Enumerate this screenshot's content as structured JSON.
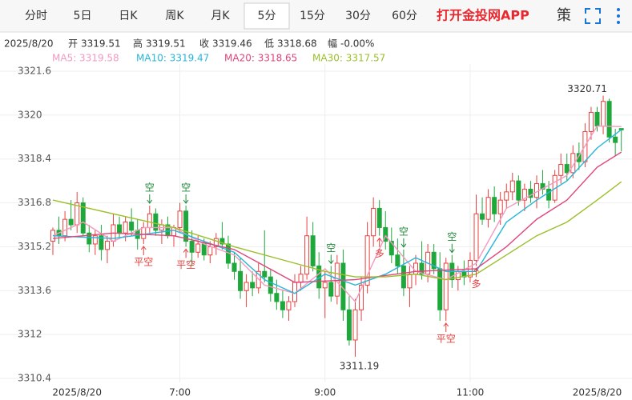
{
  "header": {
    "tabs": [
      "分时",
      "5日",
      "日K",
      "周K",
      "月K",
      "5分",
      "15分",
      "30分",
      "60分"
    ],
    "active_tab": 5,
    "brand": "打开金投网APP",
    "tools": [
      "策"
    ]
  },
  "info": {
    "date": "2025/8/20",
    "labels": [
      "开",
      "高",
      "收",
      "低",
      "幅"
    ],
    "change": "-0.00%"
  },
  "chart_data": {
    "type": "candlestick",
    "up_color": "#e8403e",
    "down_color": "#1ea83c",
    "ylim": [
      3310.4,
      3321.6
    ],
    "yticks": [
      3310.4,
      3312,
      3313.6,
      3315.2,
      3316.8,
      3318.4,
      3320,
      3321.6
    ],
    "grid": true,
    "x_labels": [
      {
        "label": "2025/8/20",
        "bar": 4
      },
      {
        "label": "7:00",
        "bar": 21
      },
      {
        "label": "9:00",
        "bar": 45
      },
      {
        "label": "11:00",
        "bar": 69
      },
      {
        "label": "2025/8/20",
        "bar": 90
      }
    ],
    "candles": [
      [
        3315.4,
        3315.9,
        3314.9,
        3315.8
      ],
      [
        3315.8,
        3316.3,
        3315.3,
        3315.6
      ],
      [
        3315.6,
        3316.5,
        3315.4,
        3316.2
      ],
      [
        3316.2,
        3316.9,
        3315.8,
        3316.0
      ],
      [
        3316.0,
        3317.2,
        3315.7,
        3316.8
      ],
      [
        3316.8,
        3317.0,
        3315.6,
        3315.7
      ],
      [
        3315.7,
        3316.0,
        3315.0,
        3315.3
      ],
      [
        3315.3,
        3315.8,
        3314.9,
        3315.6
      ],
      [
        3315.6,
        3316.0,
        3314.7,
        3315.1
      ],
      [
        3315.1,
        3315.6,
        3314.6,
        3315.4
      ],
      [
        3315.4,
        3316.4,
        3315.2,
        3316.0
      ],
      [
        3316.0,
        3316.3,
        3315.5,
        3315.7
      ],
      [
        3315.7,
        3316.3,
        3315.4,
        3316.1
      ],
      [
        3316.1,
        3316.6,
        3315.6,
        3315.8
      ],
      [
        3315.8,
        3316.2,
        3315.1,
        3315.5
      ],
      [
        3315.5,
        3316.1,
        3315.3,
        3315.9
      ],
      [
        3315.9,
        3316.7,
        3315.7,
        3316.4
      ],
      [
        3316.4,
        3316.6,
        3315.6,
        3315.8
      ],
      [
        3315.8,
        3316.2,
        3315.3,
        3316.0
      ],
      [
        3316.0,
        3316.3,
        3315.5,
        3315.6
      ],
      [
        3315.6,
        3316.0,
        3315.2,
        3315.9
      ],
      [
        3315.9,
        3316.8,
        3315.7,
        3316.5
      ],
      [
        3316.5,
        3316.7,
        3315.2,
        3315.4
      ],
      [
        3315.4,
        3315.8,
        3314.5,
        3315.0
      ],
      [
        3315.0,
        3315.6,
        3314.8,
        3315.3
      ],
      [
        3315.3,
        3315.5,
        3314.7,
        3314.9
      ],
      [
        3314.9,
        3315.4,
        3314.6,
        3315.2
      ],
      [
        3315.2,
        3315.7,
        3314.9,
        3315.5
      ],
      [
        3315.5,
        3316.1,
        3315.1,
        3315.3
      ],
      [
        3315.3,
        3315.6,
        3314.4,
        3314.6
      ],
      [
        3314.6,
        3315.0,
        3314.0,
        3314.3
      ],
      [
        3314.3,
        3314.8,
        3313.3,
        3313.6
      ],
      [
        3313.6,
        3314.2,
        3313.0,
        3313.9
      ],
      [
        3313.9,
        3314.3,
        3313.4,
        3313.7
      ],
      [
        3313.7,
        3314.6,
        3313.5,
        3314.3
      ],
      [
        3314.3,
        3315.8,
        3313.9,
        3314.1
      ],
      [
        3314.1,
        3314.4,
        3313.2,
        3313.5
      ],
      [
        3313.5,
        3314.0,
        3312.9,
        3313.2
      ],
      [
        3313.2,
        3313.6,
        3312.6,
        3312.9
      ],
      [
        3312.9,
        3313.4,
        3312.5,
        3313.2
      ],
      [
        3313.2,
        3314.2,
        3313.0,
        3313.9
      ],
      [
        3313.9,
        3314.5,
        3313.6,
        3314.2
      ],
      [
        3314.2,
        3316.3,
        3314.0,
        3315.6
      ],
      [
        3315.6,
        3316.1,
        3314.3,
        3314.5
      ],
      [
        3314.5,
        3315.0,
        3313.3,
        3313.7
      ],
      [
        3313.7,
        3314.3,
        3312.6,
        3313.9
      ],
      [
        3313.9,
        3314.5,
        3313.2,
        3313.4
      ],
      [
        3313.4,
        3314.9,
        3313.1,
        3314.6
      ],
      [
        3314.6,
        3315.1,
        3312.5,
        3312.9
      ],
      [
        3312.9,
        3313.4,
        3311.6,
        3311.8
      ],
      [
        3311.8,
        3313.3,
        3311.19,
        3312.9
      ],
      [
        3312.9,
        3314.1,
        3312.5,
        3313.8
      ],
      [
        3313.8,
        3316.1,
        3313.5,
        3315.6
      ],
      [
        3315.6,
        3317.0,
        3315.2,
        3316.6
      ],
      [
        3316.6,
        3316.9,
        3315.6,
        3315.9
      ],
      [
        3315.9,
        3316.5,
        3315.1,
        3315.4
      ],
      [
        3315.4,
        3315.9,
        3314.6,
        3314.9
      ],
      [
        3314.9,
        3315.5,
        3314.2,
        3314.5
      ],
      [
        3314.5,
        3315.1,
        3313.4,
        3313.7
      ],
      [
        3313.7,
        3314.5,
        3313.0,
        3314.2
      ],
      [
        3314.2,
        3314.9,
        3313.8,
        3314.6
      ],
      [
        3314.6,
        3315.4,
        3314.0,
        3314.2
      ],
      [
        3314.2,
        3315.3,
        3313.9,
        3315.0
      ],
      [
        3315.0,
        3315.3,
        3314.2,
        3314.4
      ],
      [
        3314.4,
        3315.0,
        3312.5,
        3312.9
      ],
      [
        3312.9,
        3314.8,
        3312.5,
        3314.6
      ],
      [
        3314.6,
        3314.9,
        3313.7,
        3314.0
      ],
      [
        3314.0,
        3314.5,
        3313.6,
        3314.3
      ],
      [
        3314.3,
        3314.7,
        3313.8,
        3314.1
      ],
      [
        3314.1,
        3315.0,
        3313.9,
        3314.7
      ],
      [
        3314.7,
        3317.1,
        3314.5,
        3316.4
      ],
      [
        3316.4,
        3317.0,
        3316.0,
        3316.2
      ],
      [
        3316.2,
        3317.3,
        3315.9,
        3317.0
      ],
      [
        3317.0,
        3317.4,
        3316.1,
        3316.4
      ],
      [
        3316.4,
        3317.2,
        3316.0,
        3316.9
      ],
      [
        3316.9,
        3317.5,
        3316.6,
        3317.2
      ],
      [
        3317.2,
        3317.9,
        3316.9,
        3317.6
      ],
      [
        3317.6,
        3317.8,
        3316.7,
        3316.9
      ],
      [
        3316.9,
        3317.5,
        3316.5,
        3317.3
      ],
      [
        3317.3,
        3317.6,
        3316.8,
        3317.0
      ],
      [
        3317.0,
        3317.8,
        3316.6,
        3317.5
      ],
      [
        3317.5,
        3318.0,
        3317.1,
        3317.3
      ],
      [
        3317.3,
        3317.6,
        3316.6,
        3316.9
      ],
      [
        3316.9,
        3318.0,
        3316.8,
        3317.8
      ],
      [
        3317.8,
        3318.6,
        3317.5,
        3318.2
      ],
      [
        3318.2,
        3318.6,
        3317.6,
        3317.9
      ],
      [
        3317.9,
        3318.9,
        3317.7,
        3318.6
      ],
      [
        3318.6,
        3319.0,
        3318.0,
        3318.3
      ],
      [
        3318.3,
        3319.7,
        3318.1,
        3319.4
      ],
      [
        3319.4,
        3320.3,
        3319.1,
        3320.1
      ],
      [
        3320.1,
        3320.3,
        3319.4,
        3319.6
      ],
      [
        3319.6,
        3320.71,
        3319.3,
        3320.5
      ],
      [
        3320.5,
        3320.6,
        3319.0,
        3319.2
      ],
      [
        3319.2,
        3319.5,
        3318.5,
        3319.0
      ],
      [
        3319.51,
        3319.51,
        3318.68,
        3319.46
      ]
    ],
    "max_label_bar": 91,
    "min_label_bar": 50,
    "series": [
      {
        "label": "MA5: 3319.58",
        "color": "#f29ac0",
        "x": [
          0,
          5,
          10,
          15,
          20,
          25,
          30,
          35,
          40,
          45,
          50,
          55,
          60,
          65,
          70,
          75,
          80,
          85,
          90,
          94
        ],
        "values": [
          3315.6,
          3316.1,
          3315.4,
          3315.9,
          3315.9,
          3315.3,
          3314.9,
          3313.8,
          3313.5,
          3314.4,
          3313.2,
          3315.6,
          3314.3,
          3314.0,
          3314.6,
          3316.6,
          3317.2,
          3317.8,
          3319.6,
          3319.58
        ]
      },
      {
        "label": "MA10: 3319.47",
        "color": "#26b5d9",
        "x": [
          0,
          10,
          20,
          30,
          35,
          40,
          45,
          50,
          55,
          60,
          65,
          70,
          75,
          80,
          85,
          90,
          94
        ],
        "values": [
          3315.6,
          3315.5,
          3315.8,
          3315.0,
          3314.0,
          3313.5,
          3314.2,
          3313.8,
          3314.2,
          3314.8,
          3314.3,
          3314.3,
          3316.1,
          3316.9,
          3317.6,
          3318.8,
          3319.47
        ]
      },
      {
        "label": "MA20: 3318.65",
        "color": "#e0457b",
        "x": [
          0,
          10,
          20,
          30,
          40,
          50,
          60,
          70,
          75,
          80,
          85,
          90,
          94
        ],
        "values": [
          3315.5,
          3315.7,
          3315.6,
          3315.1,
          3313.9,
          3314.0,
          3314.3,
          3314.4,
          3315.2,
          3316.2,
          3316.9,
          3318.1,
          3318.65
        ]
      },
      {
        "label": "MA30: 3317.57",
        "color": "#9bbf2a",
        "x": [
          0,
          10,
          20,
          30,
          40,
          45,
          50,
          55,
          60,
          65,
          70,
          75,
          80,
          85,
          90,
          94
        ],
        "values": [
          3316.9,
          3316.4,
          3315.9,
          3315.2,
          3314.6,
          3314.3,
          3314.1,
          3314.1,
          3314.2,
          3314.0,
          3314.2,
          3314.9,
          3315.6,
          3316.1,
          3316.9,
          3317.57
        ]
      }
    ],
    "annotations": [
      {
        "text": "空",
        "bar": 16,
        "side": "above",
        "color": "#1e8a3a"
      },
      {
        "text": "空",
        "bar": 22,
        "side": "above",
        "color": "#1e8a3a"
      },
      {
        "text": "平空",
        "bar": 15,
        "side": "below",
        "color": "#e8403e"
      },
      {
        "text": "平空",
        "bar": 22,
        "side": "below",
        "color": "#e8403e"
      },
      {
        "text": "空",
        "bar": 46,
        "side": "above",
        "color": "#1e8a3a"
      },
      {
        "text": "多",
        "bar": 54,
        "side": "below",
        "color": "#e8403e"
      },
      {
        "text": "空",
        "bar": 58,
        "side": "above",
        "color": "#1e8a3a"
      },
      {
        "text": "空",
        "bar": 66,
        "side": "above",
        "color": "#1e8a3a"
      },
      {
        "text": "平空",
        "bar": 65,
        "side": "below",
        "color": "#e8403e"
      },
      {
        "text": "多",
        "bar": 70,
        "side": "below",
        "color": "#e8403e"
      }
    ]
  }
}
